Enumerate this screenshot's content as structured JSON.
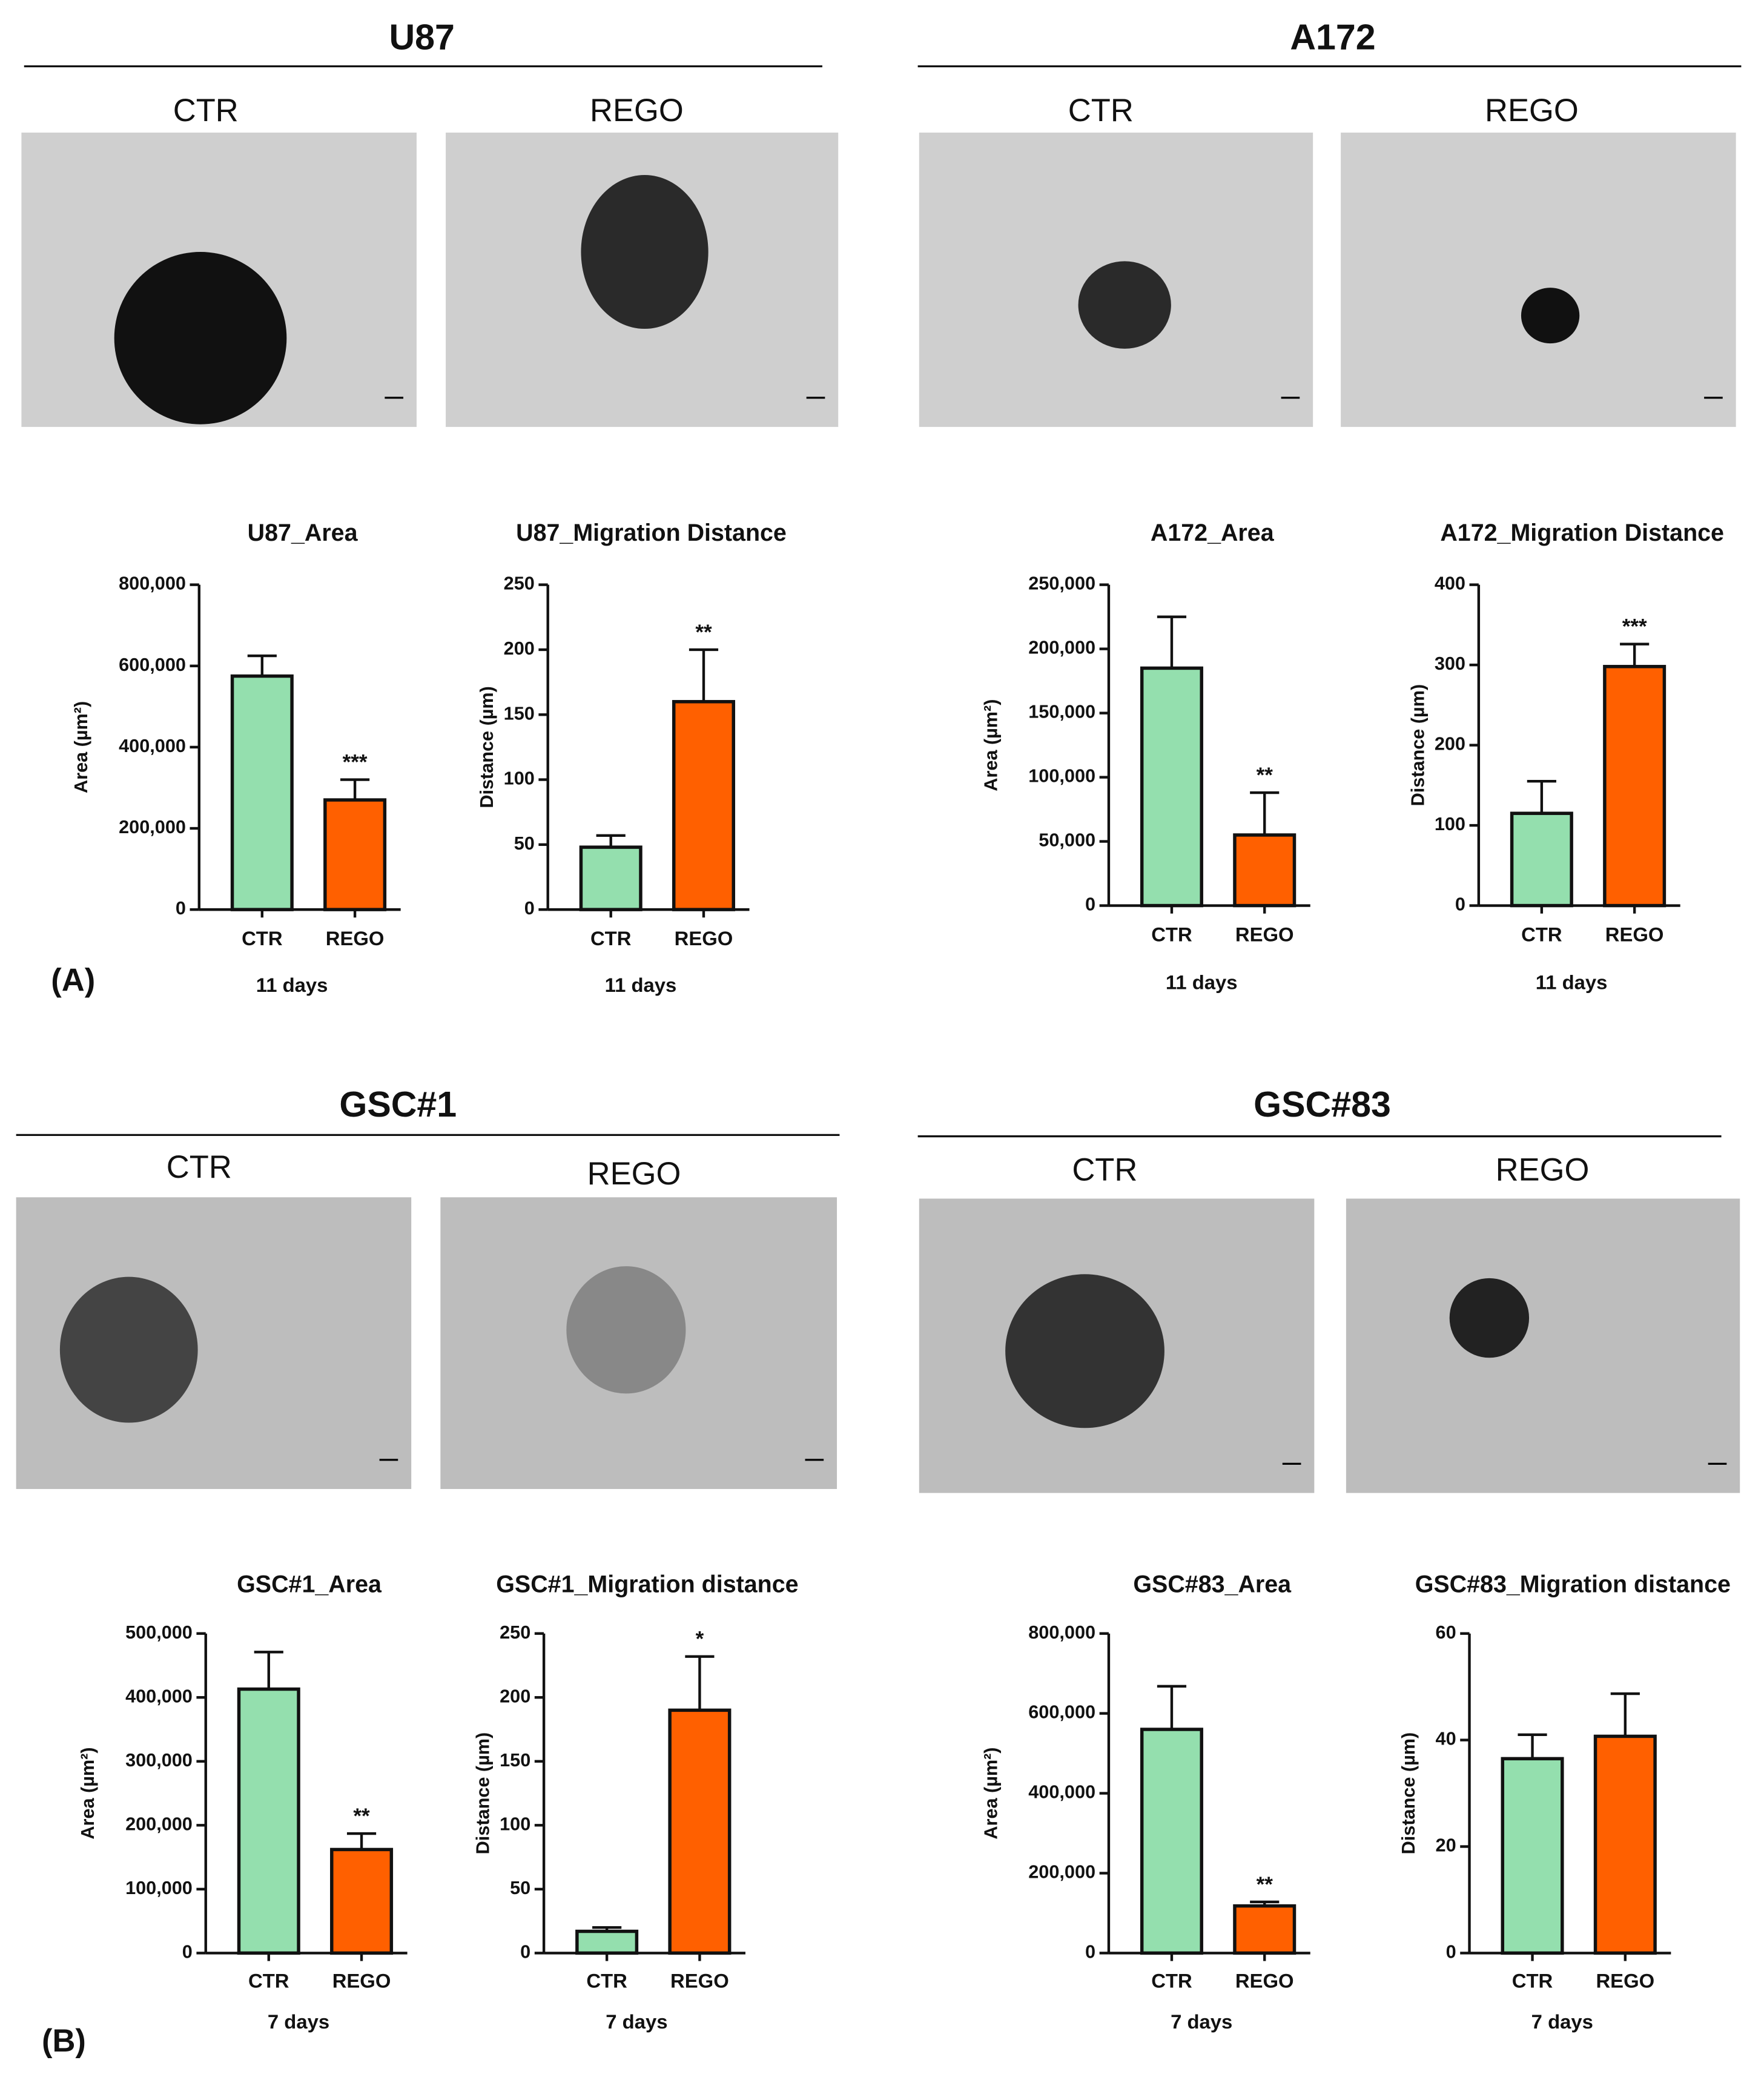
{
  "groups": [
    {
      "title": "U87",
      "image_labels": [
        "CTR",
        "REGO"
      ]
    },
    {
      "title": "A172",
      "image_labels": [
        "CTR",
        "REGO"
      ]
    },
    {
      "title": "GSC#1",
      "image_labels": [
        "CTR",
        "REGO"
      ]
    },
    {
      "title": "GSC#83",
      "image_labels": [
        "CTR",
        "REGO"
      ]
    }
  ],
  "panel_labels": [
    "(A)",
    "(B)"
  ],
  "chart_data": [
    {
      "type": "bar",
      "title": "U87_Area",
      "xlabel": "11 days",
      "ylabel": "Area (µm²)",
      "categories": [
        "CTR",
        "REGO"
      ],
      "values": [
        575000,
        270000
      ],
      "errors": [
        50000,
        50000
      ],
      "colors": [
        "#94dfae",
        "#ff6000"
      ],
      "value_annotations": [
        null,
        "***"
      ],
      "ylim": [
        0,
        800000
      ],
      "yticks": [
        {
          "value": 0,
          "label": "0"
        },
        {
          "value": 200000,
          "label": "200,000"
        },
        {
          "value": 400000,
          "label": "400,000"
        },
        {
          "value": 600000,
          "label": "600,000"
        },
        {
          "value": 800000,
          "label": "800,000"
        }
      ]
    },
    {
      "type": "bar",
      "title": "U87_Migration Distance",
      "xlabel": "11 days",
      "ylabel": "Distance (µm)",
      "categories": [
        "CTR",
        "REGO"
      ],
      "values": [
        48,
        160
      ],
      "errors": [
        9,
        40
      ],
      "colors": [
        "#94dfae",
        "#ff6000"
      ],
      "value_annotations": [
        null,
        "**"
      ],
      "ylim": [
        0,
        250
      ],
      "yticks": [
        0,
        50,
        100,
        150,
        200,
        250
      ]
    },
    {
      "type": "bar",
      "title": "A172_Area",
      "xlabel": "11 days",
      "ylabel": "Area (µm²)",
      "categories": [
        "CTR",
        "REGO"
      ],
      "values": [
        185000,
        55000
      ],
      "errors": [
        40000,
        33000
      ],
      "colors": [
        "#94dfae",
        "#ff6000"
      ],
      "value_annotations": [
        null,
        "**"
      ],
      "ylim": [
        0,
        250000
      ],
      "yticks": [
        {
          "value": 0,
          "label": "0"
        },
        {
          "value": 50000,
          "label": "50,000"
        },
        {
          "value": 100000,
          "label": "100,000"
        },
        {
          "value": 150000,
          "label": "150,000"
        },
        {
          "value": 200000,
          "label": "200,000"
        },
        {
          "value": 250000,
          "label": "250,000"
        }
      ]
    },
    {
      "type": "bar",
      "title": "A172_Migration Distance",
      "xlabel": "11 days",
      "ylabel": "Distance (µm)",
      "categories": [
        "CTR",
        "REGO"
      ],
      "values": [
        115,
        298
      ],
      "errors": [
        40,
        28
      ],
      "colors": [
        "#94dfae",
        "#ff6000"
      ],
      "value_annotations": [
        null,
        "***"
      ],
      "ylim": [
        0,
        400
      ],
      "yticks": [
        0,
        100,
        200,
        300,
        400
      ]
    },
    {
      "type": "bar",
      "title": "GSC#1_Area",
      "xlabel": "7 days",
      "ylabel": "Area (µm²)",
      "categories": [
        "CTR",
        "REGO"
      ],
      "values": [
        413000,
        162000
      ],
      "errors": [
        58000,
        25000
      ],
      "colors": [
        "#94dfae",
        "#ff6000"
      ],
      "value_annotations": [
        null,
        "**"
      ],
      "ylim": [
        0,
        500000
      ],
      "yticks": [
        {
          "value": 0,
          "label": "0"
        },
        {
          "value": 100000,
          "label": "100,000"
        },
        {
          "value": 200000,
          "label": "200,000"
        },
        {
          "value": 300000,
          "label": "300,000"
        },
        {
          "value": 400000,
          "label": "400,000"
        },
        {
          "value": 500000,
          "label": "500,000"
        }
      ]
    },
    {
      "type": "bar",
      "title": "GSC#1_Migration distance",
      "xlabel": "7 days",
      "ylabel": "Distance (µm)",
      "categories": [
        "CTR",
        "REGO"
      ],
      "values": [
        17,
        190
      ],
      "errors": [
        3,
        42
      ],
      "colors": [
        "#94dfae",
        "#ff6000"
      ],
      "value_annotations": [
        null,
        "*"
      ],
      "ylim": [
        0,
        250
      ],
      "yticks": [
        0,
        50,
        100,
        150,
        200,
        250
      ]
    },
    {
      "type": "bar",
      "title": "GSC#83_Area",
      "xlabel": "7 days",
      "ylabel": "Area (µm²)",
      "categories": [
        "CTR",
        "REGO"
      ],
      "values": [
        560000,
        118000
      ],
      "errors": [
        108000,
        10000
      ],
      "colors": [
        "#94dfae",
        "#ff6000"
      ],
      "value_annotations": [
        null,
        "**"
      ],
      "ylim": [
        0,
        800000
      ],
      "yticks": [
        {
          "value": 0,
          "label": "0"
        },
        {
          "value": 200000,
          "label": "200,000"
        },
        {
          "value": 400000,
          "label": "400,000"
        },
        {
          "value": 600000,
          "label": "600,000"
        },
        {
          "value": 800000,
          "label": "800,000"
        }
      ]
    },
    {
      "type": "bar",
      "title": "GSC#83_Migration distance",
      "xlabel": "7 days",
      "ylabel": "Distance (µm)",
      "categories": [
        "CTR",
        "REGO"
      ],
      "values": [
        36.5,
        40.7
      ],
      "errors": [
        4.5,
        8
      ],
      "colors": [
        "#94dfae",
        "#ff6000"
      ],
      "value_annotations": [
        null,
        null
      ],
      "ylim": [
        0,
        60
      ],
      "yticks": [
        0,
        20,
        40,
        60
      ]
    }
  ]
}
